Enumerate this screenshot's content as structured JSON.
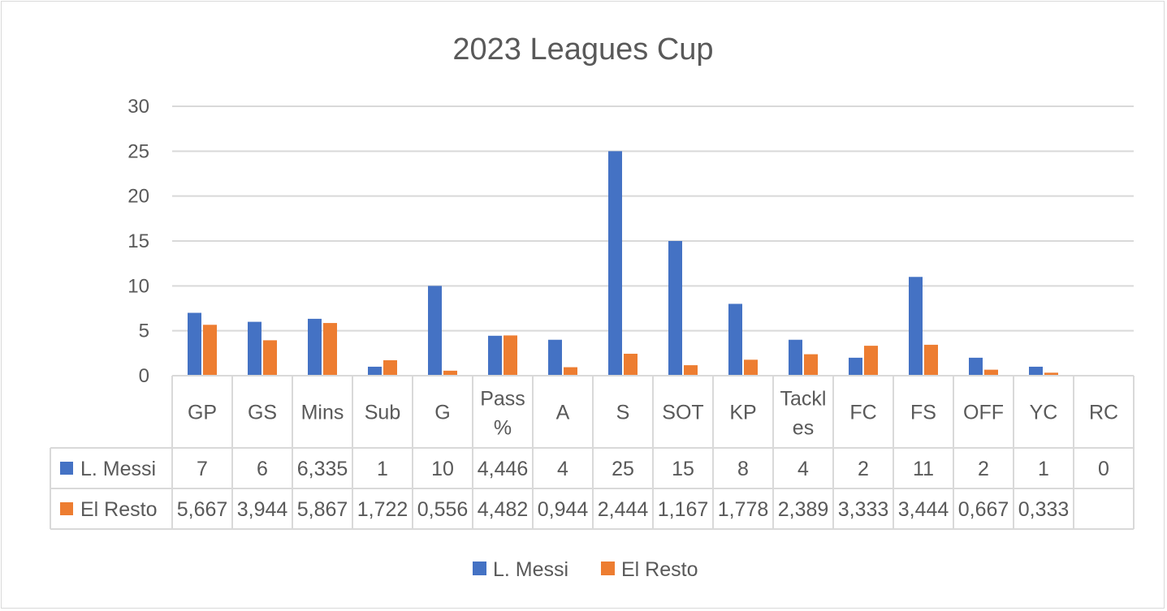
{
  "chart_data": {
    "type": "bar",
    "title": "2023 Leagues Cup",
    "categories": [
      "GP",
      "GS",
      "Mins",
      "Sub",
      "G",
      "Pass %",
      "A",
      "S",
      "SOT",
      "KP",
      "Tackles",
      "FC",
      "FS",
      "OFF",
      "YC",
      "RC"
    ],
    "category_lines": [
      [
        "GP"
      ],
      [
        "GS"
      ],
      [
        "Mins"
      ],
      [
        "Sub"
      ],
      [
        "G"
      ],
      [
        "Pass",
        "%"
      ],
      [
        "A"
      ],
      [
        "S"
      ],
      [
        "SOT"
      ],
      [
        "KP"
      ],
      [
        "Tackl",
        "es"
      ],
      [
        "FC"
      ],
      [
        "FS"
      ],
      [
        "OFF"
      ],
      [
        "YC"
      ],
      [
        "RC"
      ]
    ],
    "series": [
      {
        "name": "L. Messi",
        "color": "#4472c4",
        "values": [
          7,
          6,
          6.335,
          1,
          10,
          4.446,
          4,
          25,
          15,
          8,
          4,
          2,
          11,
          2,
          1,
          0
        ],
        "labels": [
          "7",
          "6",
          "6,335",
          "1",
          "10",
          "4,446",
          "4",
          "25",
          "15",
          "8",
          "4",
          "2",
          "11",
          "2",
          "1",
          "0"
        ]
      },
      {
        "name": "El Resto",
        "color": "#ed7d31",
        "values": [
          5.667,
          3.944,
          5.867,
          1.722,
          0.556,
          4.482,
          0.944,
          2.444,
          1.167,
          1.778,
          2.389,
          3.333,
          3.444,
          0.667,
          0.333,
          null
        ],
        "labels": [
          "5,667",
          "3,944",
          "5,867",
          "1,722",
          "0,556",
          "4,482",
          "0,944",
          "2,444",
          "1,167",
          "1,778",
          "2,389",
          "3,333",
          "3,444",
          "0,667",
          "0,333",
          ""
        ]
      }
    ],
    "ylim": [
      0,
      30
    ],
    "yticks": [
      0,
      5,
      10,
      15,
      20,
      25,
      30
    ],
    "grid": true,
    "legend": "bottom",
    "data_table": true
  }
}
